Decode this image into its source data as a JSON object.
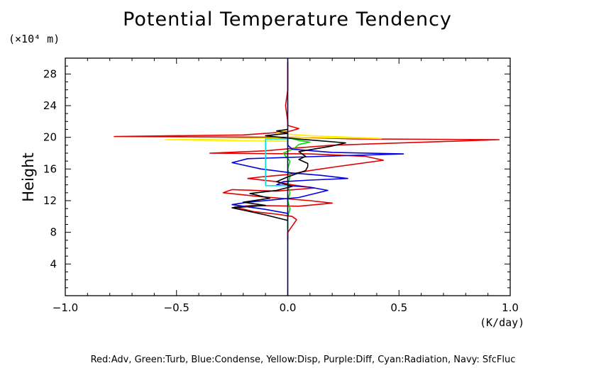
{
  "chart_data": {
    "type": "line",
    "title": "Potential Temperature Tendency",
    "ylabel": "Height",
    "y_unit": "(×10⁴ m)",
    "x_unit": "(K/day)",
    "xlim": [
      -1.0,
      1.0
    ],
    "ylim": [
      0,
      30
    ],
    "x_ticks": [
      -1.0,
      -0.5,
      0.0,
      0.5,
      1.0
    ],
    "x_tick_labels": [
      "−1.0",
      "−0.5",
      "0.0",
      "0.5",
      "1.0"
    ],
    "y_ticks": [
      4,
      8,
      12,
      16,
      20,
      24,
      28
    ],
    "y_tick_labels": [
      "4",
      "8",
      "12",
      "16",
      "20",
      "24",
      "28"
    ],
    "grid": false,
    "legend_text": "Red:Adv, Green:Turb, Blue:Condense, Yellow:Disp, Purple:Diff, Cyan:Radiation, Navy: SfcFluc",
    "series": [
      {
        "name": "Adv",
        "color": "#e00000",
        "points": [
          [
            0.0,
            7.0
          ],
          [
            0.0,
            8.0
          ],
          [
            0.03,
            9.2
          ],
          [
            0.04,
            9.6
          ],
          [
            0.02,
            10.0
          ],
          [
            -0.05,
            10.3
          ],
          [
            -0.15,
            10.6
          ],
          [
            -0.24,
            11.2
          ],
          [
            -0.16,
            11.4
          ],
          [
            0.05,
            11.3
          ],
          [
            0.2,
            11.7
          ],
          [
            0.1,
            12.0
          ],
          [
            -0.12,
            12.5
          ],
          [
            -0.29,
            13.0
          ],
          [
            -0.25,
            13.4
          ],
          [
            -0.05,
            13.2
          ],
          [
            0.12,
            13.6
          ],
          [
            0.02,
            14.0
          ],
          [
            -0.05,
            14.4
          ],
          [
            -0.18,
            14.8
          ],
          [
            -0.12,
            15.0
          ],
          [
            0.0,
            15.3
          ],
          [
            0.1,
            15.8
          ],
          [
            0.22,
            16.3
          ],
          [
            0.43,
            17.1
          ],
          [
            0.35,
            17.6
          ],
          [
            0.1,
            17.9
          ],
          [
            -0.35,
            18.0
          ],
          [
            -0.1,
            18.3
          ],
          [
            0.06,
            18.7
          ],
          [
            0.2,
            19.0
          ],
          [
            0.95,
            19.7
          ],
          [
            0.3,
            19.8
          ],
          [
            0.05,
            20.0
          ],
          [
            -0.78,
            20.1
          ],
          [
            -0.2,
            20.3
          ],
          [
            0.0,
            20.7
          ],
          [
            0.05,
            21.1
          ],
          [
            0.0,
            21.5
          ],
          [
            0.0,
            22.0
          ],
          [
            -0.01,
            24.0
          ],
          [
            0.0,
            26.0
          ],
          [
            0.0,
            28.0
          ],
          [
            0.0,
            29.5
          ]
        ]
      },
      {
        "name": "Turb",
        "color": "#00dd00",
        "points": [
          [
            0.0,
            8.5
          ],
          [
            0.0,
            10.0
          ],
          [
            0.01,
            11.0
          ],
          [
            0.0,
            12.0
          ],
          [
            0.01,
            13.0
          ],
          [
            0.0,
            14.0
          ],
          [
            0.01,
            15.0
          ],
          [
            0.0,
            16.0
          ],
          [
            0.01,
            17.0
          ],
          [
            -0.02,
            18.0
          ],
          [
            0.03,
            18.6
          ],
          [
            0.05,
            19.1
          ],
          [
            0.1,
            19.4
          ],
          [
            0.05,
            19.6
          ],
          [
            0.0,
            20.0
          ],
          [
            0.0,
            21.0
          ]
        ]
      },
      {
        "name": "Condense",
        "color": "#0000e0",
        "points": [
          [
            0.0,
            10.0
          ],
          [
            0.0,
            10.4
          ],
          [
            -0.1,
            10.9
          ],
          [
            -0.25,
            11.5
          ],
          [
            -0.18,
            11.8
          ],
          [
            0.05,
            12.4
          ],
          [
            0.18,
            13.3
          ],
          [
            0.1,
            13.7
          ],
          [
            -0.05,
            14.0
          ],
          [
            -0.02,
            14.4
          ],
          [
            0.1,
            14.6
          ],
          [
            0.27,
            14.8
          ],
          [
            0.15,
            15.2
          ],
          [
            0.02,
            15.5
          ],
          [
            -0.12,
            16.0
          ],
          [
            -0.25,
            16.8
          ],
          [
            -0.18,
            17.3
          ],
          [
            0.15,
            17.6
          ],
          [
            0.52,
            17.9
          ],
          [
            0.2,
            18.1
          ],
          [
            0.02,
            18.5
          ],
          [
            0.0,
            19.0
          ],
          [
            0.0,
            20.0
          ]
        ]
      },
      {
        "name": "Disp",
        "color": "#ffee00",
        "points": [
          [
            0.0,
            19.5
          ],
          [
            -0.55,
            19.7
          ],
          [
            -0.2,
            19.85
          ],
          [
            0.1,
            20.0
          ],
          [
            0.42,
            19.85
          ],
          [
            0.1,
            20.2
          ],
          [
            -0.05,
            20.5
          ],
          [
            0.0,
            21.0
          ]
        ]
      },
      {
        "name": "Diff",
        "color": "#000000",
        "points": [
          [
            0.0,
            9.5
          ],
          [
            -0.1,
            10.2
          ],
          [
            -0.2,
            10.8
          ],
          [
            -0.25,
            11.1
          ],
          [
            -0.1,
            11.4
          ],
          [
            -0.2,
            11.8
          ],
          [
            -0.08,
            12.3
          ],
          [
            -0.17,
            12.9
          ],
          [
            -0.05,
            13.3
          ],
          [
            0.02,
            13.8
          ],
          [
            -0.05,
            14.4
          ],
          [
            0.0,
            15.0
          ],
          [
            0.04,
            15.4
          ],
          [
            0.08,
            15.8
          ],
          [
            0.09,
            16.3
          ],
          [
            0.09,
            16.7
          ],
          [
            0.05,
            17.2
          ],
          [
            0.08,
            17.6
          ],
          [
            0.05,
            18.2
          ],
          [
            0.2,
            18.9
          ],
          [
            0.26,
            19.3
          ],
          [
            0.0,
            19.9
          ],
          [
            -0.1,
            20.2
          ],
          [
            0.0,
            20.5
          ],
          [
            -0.05,
            20.8
          ],
          [
            0.0,
            21.0
          ]
        ]
      },
      {
        "name": "Radiation",
        "color": "#00e5e5",
        "points": [
          [
            0.0,
            13.9
          ],
          [
            -0.1,
            13.9
          ],
          [
            -0.1,
            19.8
          ],
          [
            0.0,
            19.8
          ]
        ]
      },
      {
        "name": "SfcFluc",
        "color": "#000060",
        "points": [
          [
            0.0,
            0.0
          ],
          [
            0.0,
            30.0
          ]
        ]
      }
    ]
  }
}
